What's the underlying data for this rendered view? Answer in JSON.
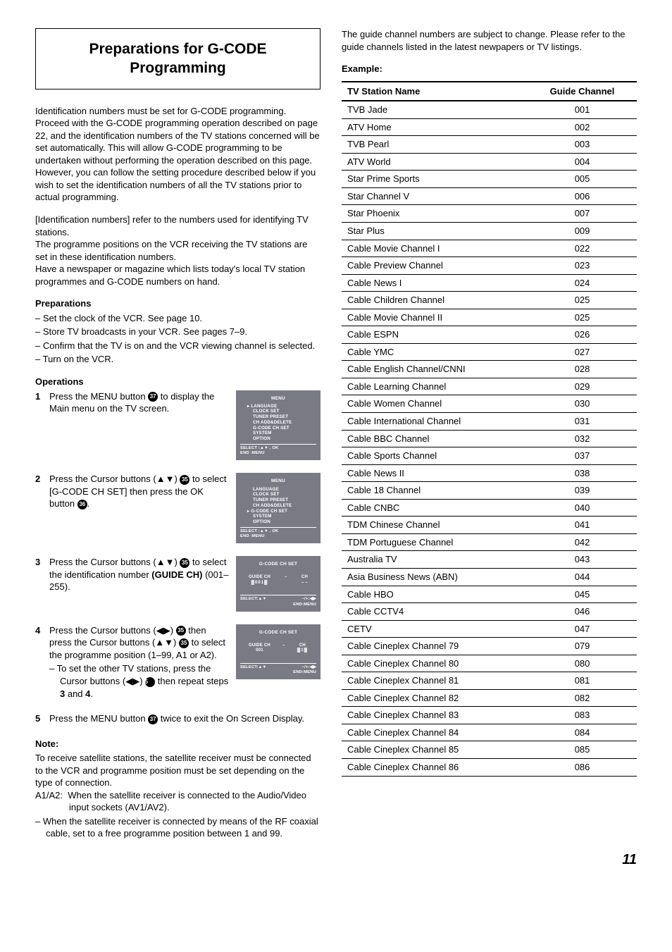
{
  "title": {
    "line1": "Preparations for G-",
    "line1_smallcaps": "CODE",
    "line2": "Programming"
  },
  "left": {
    "intro": "Identification numbers must be set for G-CODE programming. Proceed with the G-CODE programming operation described on page 22, and the identification numbers of the TV stations concerned will be set automatically. This will allow G-CODE programming to be undertaken without performing the operation described on this page. However, you can follow the setting procedure described below if you wish to set the identification numbers of all the TV stations prior to actual programming.",
    "idnums": "[Identification numbers] refer to the numbers used for identifying TV stations.",
    "progpos": "The programme positions on the VCR receiving the TV stations are set in these identification numbers.",
    "newspaper": "Have a newspaper or magazine which lists today's local TV station programmes and G-CODE numbers on hand.",
    "preparations_heading": "Preparations",
    "prep_items": [
      "Set the clock of the VCR. See page 10.",
      "Store TV broadcasts in your VCR. See pages 7–9.",
      "Confirm that the TV is on and the VCR viewing channel is selected.",
      "Turn on the VCR."
    ],
    "operations_heading": "Operations",
    "ops": {
      "1": {
        "text_a": "Press the MENU button ",
        "circ1": "37",
        "text_b": " to display the Main menu on the TV screen."
      },
      "2": {
        "text_a": "Press the Cursor buttons (▲▼) ",
        "circ1": "35",
        "text_b": " to select [G-CODE CH SET] then press the OK button ",
        "circ2": "36",
        "text_c": "."
      },
      "3": {
        "text_a": "Press the Cursor buttons (▲▼) ",
        "circ1": "35",
        "text_b": " to select the identification number ",
        "bold": "(GUIDE CH)",
        "text_c": " (001–255)."
      },
      "4": {
        "text_a": "Press the Cursor buttons (◀▶) ",
        "circ1": "35",
        "text_b": " then press the Cursor buttons (▲▼) ",
        "circ2": "35",
        "text_c": " to select the programme position (1–99, A1 or A2).",
        "sub_a": "To set the other TV stations, press the Cursor buttons (◀▶) ",
        "sub_circ": "35",
        "sub_b": " then repeat steps ",
        "sub_bold1": "3",
        "sub_mid": " and ",
        "sub_bold2": "4",
        "sub_end": "."
      },
      "5": {
        "text_a": "Press the MENU button ",
        "circ1": "37",
        "text_b": " twice to exit the On Screen Display."
      }
    },
    "screens": {
      "menu": {
        "title": "MENU",
        "items": [
          "LANGUAGE",
          "CLOCK SET",
          "TUNER PRESET",
          "CH ADD&DELETE",
          "G-CODE CH SET",
          "SYSTEM",
          "OPTION"
        ],
        "selected_index_1": 0,
        "selected_index_2": 4,
        "footer_l1": "SELECT :▲▼ , OK",
        "footer_l2": "END      :MENU"
      },
      "gcode": {
        "title": "G-CODE CH SET",
        "guide_label": "GUIDE CH",
        "guide_val_1": "001",
        "ch_label": "CH",
        "ch_val_1": "– –",
        "ch_val_2": "1",
        "footer_l": "SELECT:▲▼",
        "footer_r1": "−/+:◀▶",
        "footer_r2": "END:MENU"
      }
    },
    "note_heading": "Note:",
    "note_body": "To receive satellite stations, the satellite receiver must be connected to the VCR and programme position must be set depending on the type of connection.",
    "note_a1a2_label": "A1/A2:",
    "note_a1a2": "When the satellite receiver is connected to the Audio/Video input sockets (AV1/AV2).",
    "note_dash": "When the satellite receiver is connected by means of the RF coaxial cable, set to a free programme position between 1 and 99."
  },
  "right": {
    "intro": "The guide channel numbers are subject to change. Please refer to the guide channels listed in the latest newpapers or TV listings.",
    "example_heading": "Example:",
    "table": {
      "headers": [
        "TV Station Name",
        "Guide Channel"
      ],
      "rows": [
        [
          "TVB Jade",
          "001"
        ],
        [
          "ATV Home",
          "002"
        ],
        [
          "TVB Pearl",
          "003"
        ],
        [
          "ATV World",
          "004"
        ],
        [
          "Star Prime Sports",
          "005"
        ],
        [
          "Star Channel V",
          "006"
        ],
        [
          "Star Phoenix",
          "007"
        ],
        [
          "Star Plus",
          "009"
        ],
        [
          "Cable Movie Channel I",
          "022"
        ],
        [
          "Cable Preview Channel",
          "023"
        ],
        [
          "Cable News I",
          "024"
        ],
        [
          "Cable Children Channel",
          "025"
        ],
        [
          "Cable Movie Channel II",
          "025"
        ],
        [
          "Cable ESPN",
          "026"
        ],
        [
          "Cable YMC",
          "027"
        ],
        [
          "Cable English Channel/CNNI",
          "028"
        ],
        [
          "Cable Learning Channel",
          "029"
        ],
        [
          "Cable Women Channel",
          "030"
        ],
        [
          "Cable International Channel",
          "031"
        ],
        [
          "Cable BBC Channel",
          "032"
        ],
        [
          "Cable Sports Channel",
          "037"
        ],
        [
          "Cable News II",
          "038"
        ],
        [
          "Cable 18 Channel",
          "039"
        ],
        [
          "Cable CNBC",
          "040"
        ],
        [
          "TDM Chinese Channel",
          "041"
        ],
        [
          "TDM Portuguese Channel",
          "042"
        ],
        [
          "Australia TV",
          "043"
        ],
        [
          "Asia Business News (ABN)",
          "044"
        ],
        [
          "Cable HBO",
          "045"
        ],
        [
          "Cable CCTV4",
          "046"
        ],
        [
          "CETV",
          "047"
        ],
        [
          "Cable Cineplex Channel 79",
          "079"
        ],
        [
          "Cable Cineplex Channel 80",
          "080"
        ],
        [
          "Cable Cineplex Channel 81",
          "081"
        ],
        [
          "Cable Cineplex Channel 82",
          "082"
        ],
        [
          "Cable Cineplex Channel 83",
          "083"
        ],
        [
          "Cable Cineplex Channel 84",
          "084"
        ],
        [
          "Cable Cineplex Channel 85",
          "085"
        ],
        [
          "Cable Cineplex Channel 86",
          "086"
        ]
      ]
    }
  },
  "page_number": "11"
}
